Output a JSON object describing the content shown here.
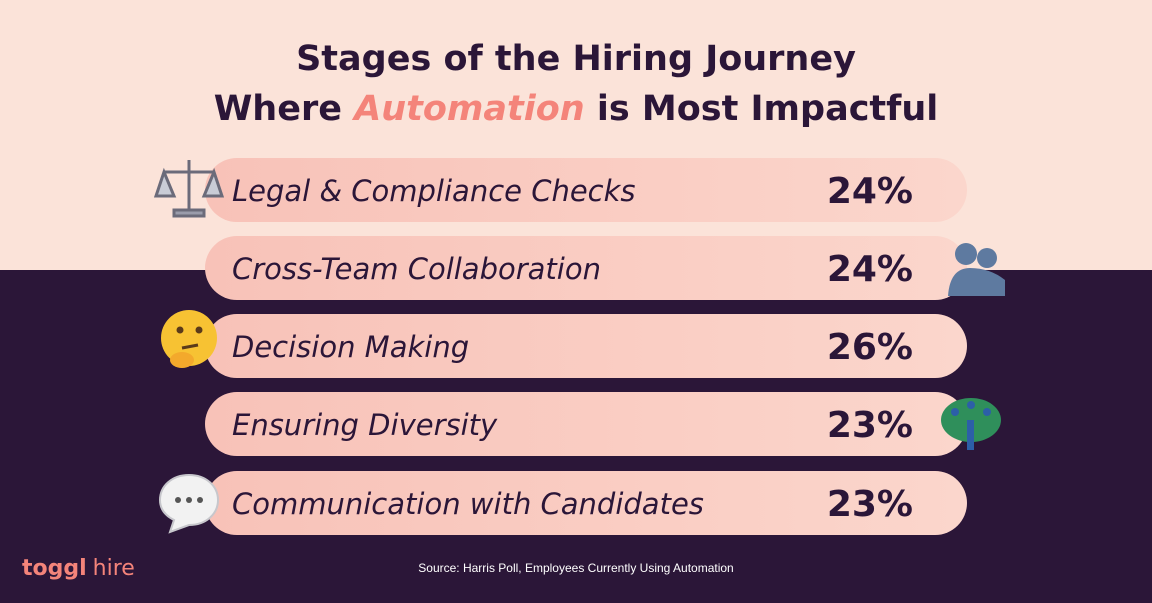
{
  "header": {
    "title_line1": "Stages of the Hiring Journey",
    "title_line2_start": "Where ",
    "title_line2_accent": "Automation",
    "title_line2_end": " is Most Impactful"
  },
  "items": [
    {
      "label": "Legal & Compliance Checks",
      "value": "24%"
    },
    {
      "label": "Cross-Team Collaboration",
      "value": "24%"
    },
    {
      "label": "Decision Making",
      "value": "26%"
    },
    {
      "label": "Ensuring Diversity",
      "value": "23%"
    },
    {
      "label": "Communication with Candidates",
      "value": "23%"
    }
  ],
  "footer": {
    "brand_bold": "toggl",
    "brand_light": "hire",
    "source": "Source: Harris Poll, Employees Currently Using Automation"
  }
}
